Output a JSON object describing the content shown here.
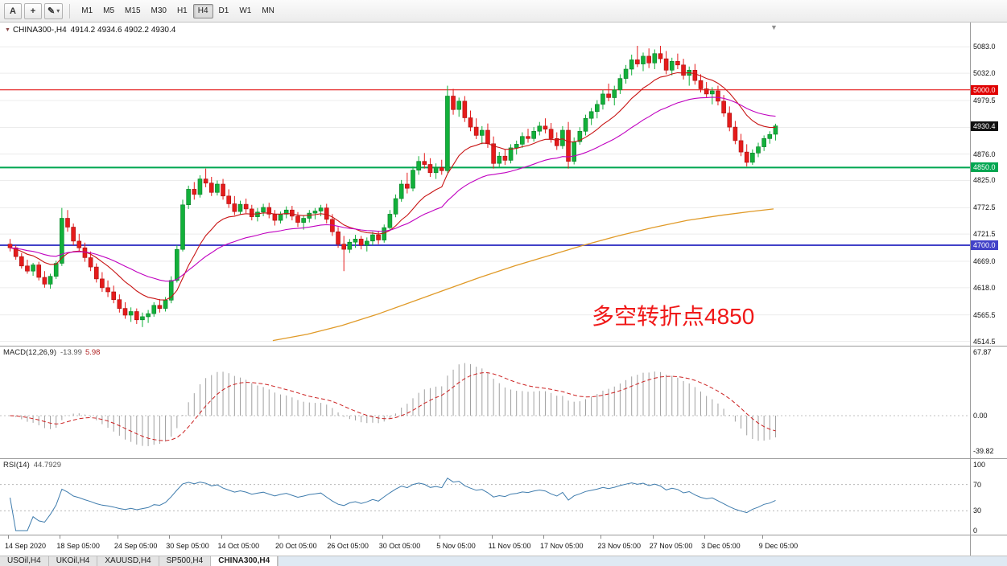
{
  "toolbar": {
    "button_a": "A",
    "icons": {
      "crosshair": "+",
      "pencil": "✎",
      "caret": "▾"
    },
    "timeframes": [
      "M1",
      "M5",
      "M15",
      "M30",
      "H1",
      "H4",
      "D1",
      "W1",
      "MN"
    ],
    "active_timeframe": "H4"
  },
  "chart": {
    "type": "candlestick",
    "symbol_label": "CHINA300-,H4",
    "ohlc_text": "4914.2 4934.6 4902.2 4930.4",
    "collapse_icon": "▼",
    "shift_icon": "▼",
    "annotation": {
      "text": "多空转折点4850",
      "color": "#f01818"
    },
    "axis_labels": [
      "5083.0",
      "5032.0",
      "4979.5",
      "4927.5",
      "4876.0",
      "4825.0",
      "4772.5",
      "4721.5",
      "4669.0",
      "4618.0",
      "4565.5",
      "4514.5"
    ],
    "hlines": [
      {
        "price": 5000,
        "label": "5000.0",
        "color": "#e00000",
        "width": 1
      },
      {
        "price": 4850,
        "label": "4850.0",
        "color": "#00a651",
        "width": 2
      },
      {
        "price": 4700,
        "label": "4700.0",
        "color": "#4242c8",
        "width": 2
      }
    ],
    "current_price": {
      "value": 4930.4,
      "label": "4930.4",
      "badge_color": "#111111"
    },
    "colors": {
      "up": "#12b03a",
      "up_border": "#0a7d28",
      "down": "#e51b1b",
      "down_border": "#a80f0f",
      "ma_fast": "#c81414",
      "ma_mid": "#c000c0",
      "ma_slow": "#e09a28",
      "macd_hist": "#a0a0a0",
      "macd_signal": "#cc2222",
      "rsi_line": "#3f7cad"
    },
    "ma_slow_points": [
      [
        46,
        4516
      ],
      [
        52,
        4528
      ],
      [
        58,
        4545
      ],
      [
        64,
        4566
      ],
      [
        70,
        4590
      ],
      [
        76,
        4614
      ],
      [
        82,
        4638
      ],
      [
        88,
        4660
      ],
      [
        94,
        4680
      ],
      [
        100,
        4700
      ],
      [
        106,
        4718
      ],
      [
        112,
        4734
      ],
      [
        118,
        4748
      ],
      [
        124,
        4758
      ],
      [
        129,
        4765
      ],
      [
        133,
        4770
      ]
    ],
    "candles": [
      [
        4702,
        4712,
        4688,
        4695
      ],
      [
        4695,
        4700,
        4672,
        4678
      ],
      [
        4678,
        4685,
        4655,
        4660
      ],
      [
        4660,
        4672,
        4645,
        4650
      ],
      [
        4650,
        4666,
        4641,
        4662
      ],
      [
        4662,
        4668,
        4632,
        4638
      ],
      [
        4638,
        4650,
        4618,
        4625
      ],
      [
        4625,
        4645,
        4616,
        4640
      ],
      [
        4640,
        4670,
        4635,
        4665
      ],
      [
        4665,
        4772,
        4660,
        4752
      ],
      [
        4752,
        4768,
        4726,
        4735
      ],
      [
        4735,
        4742,
        4700,
        4708
      ],
      [
        4708,
        4722,
        4688,
        4695
      ],
      [
        4695,
        4705,
        4668,
        4676
      ],
      [
        4676,
        4688,
        4650,
        4658
      ],
      [
        4658,
        4665,
        4628,
        4635
      ],
      [
        4635,
        4648,
        4610,
        4618
      ],
      [
        4618,
        4632,
        4600,
        4610
      ],
      [
        4610,
        4622,
        4588,
        4595
      ],
      [
        4595,
        4605,
        4570,
        4578
      ],
      [
        4578,
        4590,
        4558,
        4565
      ],
      [
        4565,
        4580,
        4552,
        4572
      ],
      [
        4572,
        4578,
        4548,
        4556
      ],
      [
        4556,
        4570,
        4542,
        4562
      ],
      [
        4562,
        4575,
        4550,
        4568
      ],
      [
        4568,
        4590,
        4562,
        4584
      ],
      [
        4584,
        4596,
        4570,
        4578
      ],
      [
        4578,
        4600,
        4572,
        4594
      ],
      [
        4594,
        4640,
        4588,
        4632
      ],
      [
        4632,
        4700,
        4628,
        4692
      ],
      [
        4692,
        4788,
        4688,
        4778
      ],
      [
        4778,
        4815,
        4770,
        4808
      ],
      [
        4808,
        4822,
        4788,
        4798
      ],
      [
        4798,
        4835,
        4792,
        4828
      ],
      [
        4828,
        4848,
        4812,
        4820
      ],
      [
        4820,
        4832,
        4795,
        4802
      ],
      [
        4802,
        4825,
        4796,
        4818
      ],
      [
        4818,
        4828,
        4788,
        4795
      ],
      [
        4795,
        4808,
        4772,
        4780
      ],
      [
        4780,
        4795,
        4758,
        4765
      ],
      [
        4765,
        4786,
        4760,
        4779
      ],
      [
        4779,
        4790,
        4762,
        4770
      ],
      [
        4770,
        4778,
        4748,
        4755
      ],
      [
        4755,
        4772,
        4746,
        4764
      ],
      [
        4764,
        4780,
        4756,
        4773
      ],
      [
        4773,
        4782,
        4752,
        4760
      ],
      [
        4760,
        4768,
        4738,
        4748
      ],
      [
        4748,
        4765,
        4742,
        4760
      ],
      [
        4760,
        4775,
        4752,
        4768
      ],
      [
        4768,
        4776,
        4748,
        4756
      ],
      [
        4756,
        4764,
        4735,
        4744
      ],
      [
        4744,
        4758,
        4730,
        4752
      ],
      [
        4752,
        4768,
        4744,
        4762
      ],
      [
        4762,
        4772,
        4750,
        4766
      ],
      [
        4766,
        4778,
        4756,
        4772
      ],
      [
        4772,
        4780,
        4742,
        4750
      ],
      [
        4750,
        4760,
        4718,
        4726
      ],
      [
        4726,
        4735,
        4695,
        4702
      ],
      [
        4702,
        4718,
        4650,
        4692
      ],
      [
        4692,
        4712,
        4685,
        4706
      ],
      [
        4706,
        4720,
        4695,
        4712
      ],
      [
        4712,
        4718,
        4692,
        4700
      ],
      [
        4700,
        4715,
        4688,
        4708
      ],
      [
        4708,
        4726,
        4700,
        4720
      ],
      [
        4720,
        4728,
        4702,
        4710
      ],
      [
        4710,
        4740,
        4705,
        4734
      ],
      [
        4734,
        4768,
        4728,
        4760
      ],
      [
        4760,
        4798,
        4754,
        4790
      ],
      [
        4790,
        4826,
        4784,
        4818
      ],
      [
        4818,
        4840,
        4800,
        4810
      ],
      [
        4810,
        4852,
        4804,
        4845
      ],
      [
        4845,
        4872,
        4836,
        4862
      ],
      [
        4862,
        4878,
        4848,
        4856
      ],
      [
        4856,
        4868,
        4832,
        4840
      ],
      [
        4840,
        4858,
        4828,
        4850
      ],
      [
        4850,
        4865,
        4836,
        4844
      ],
      [
        4844,
        5008,
        4840,
        4988
      ],
      [
        4988,
        5002,
        4952,
        4962
      ],
      [
        4962,
        4985,
        4948,
        4978
      ],
      [
        4978,
        4988,
        4938,
        4946
      ],
      [
        4946,
        4960,
        4920,
        4928
      ],
      [
        4928,
        4945,
        4905,
        4912
      ],
      [
        4912,
        4930,
        4895,
        4922
      ],
      [
        4922,
        4935,
        4888,
        4896
      ],
      [
        4896,
        4910,
        4848,
        4858
      ],
      [
        4858,
        4880,
        4850,
        4872
      ],
      [
        4872,
        4885,
        4855,
        4864
      ],
      [
        4864,
        4895,
        4858,
        4888
      ],
      [
        4888,
        4902,
        4875,
        4895
      ],
      [
        4895,
        4918,
        4888,
        4910
      ],
      [
        4910,
        4925,
        4898,
        4906
      ],
      [
        4906,
        4928,
        4900,
        4920
      ],
      [
        4920,
        4938,
        4912,
        4930
      ],
      [
        4930,
        4945,
        4916,
        4924
      ],
      [
        4924,
        4936,
        4898,
        4906
      ],
      [
        4906,
        4918,
        4884,
        4892
      ],
      [
        4892,
        4930,
        4886,
        4922
      ],
      [
        4922,
        4938,
        4848,
        4862
      ],
      [
        4862,
        4908,
        4856,
        4900
      ],
      [
        4900,
        4928,
        4894,
        4920
      ],
      [
        4920,
        4952,
        4912,
        4945
      ],
      [
        4945,
        4965,
        4932,
        4958
      ],
      [
        4958,
        4980,
        4945,
        4972
      ],
      [
        4972,
        5000,
        4962,
        4992
      ],
      [
        4992,
        5012,
        4978,
        4985
      ],
      [
        4985,
        5008,
        4970,
        5000
      ],
      [
        5000,
        5030,
        4992,
        5022
      ],
      [
        5022,
        5048,
        5012,
        5040
      ],
      [
        5040,
        5068,
        5028,
        5058
      ],
      [
        5058,
        5085,
        5044,
        5050
      ],
      [
        5050,
        5072,
        5036,
        5065
      ],
      [
        5065,
        5080,
        5042,
        5052
      ],
      [
        5052,
        5078,
        5040,
        5070
      ],
      [
        5070,
        5085,
        5052,
        5060
      ],
      [
        5060,
        5075,
        5030,
        5038
      ],
      [
        5038,
        5062,
        5028,
        5055
      ],
      [
        5055,
        5070,
        5040,
        5048
      ],
      [
        5048,
        5060,
        5020,
        5028
      ],
      [
        5028,
        5045,
        5008,
        5038
      ],
      [
        5038,
        5050,
        5010,
        5018
      ],
      [
        5018,
        5030,
        4995,
        5002
      ],
      [
        5002,
        5015,
        4985,
        4992
      ],
      [
        4992,
        5005,
        4972,
        4998
      ],
      [
        4998,
        5008,
        4970,
        4978
      ],
      [
        4978,
        4990,
        4948,
        4955
      ],
      [
        4955,
        4968,
        4920,
        4928
      ],
      [
        4928,
        4940,
        4895,
        4902
      ],
      [
        4902,
        4915,
        4872,
        4880
      ],
      [
        4880,
        4895,
        4852,
        4860
      ],
      [
        4860,
        4885,
        4855,
        4878
      ],
      [
        4878,
        4898,
        4870,
        4890
      ],
      [
        4890,
        4912,
        4882,
        4906
      ],
      [
        4906,
        4920,
        4896,
        4914
      ],
      [
        4914.2,
        4934.6,
        4902.2,
        4930.4
      ]
    ]
  },
  "macd": {
    "label": "MACD(12,26,9)",
    "value_main": "-13.99",
    "value_signal": "5.98",
    "axis": [
      "67.87",
      "0.00",
      "-39.82"
    ]
  },
  "rsi": {
    "label": "RSI(14)",
    "value": "44.7929",
    "axis": [
      "100",
      "70",
      "30",
      "0"
    ],
    "levels": [
      70,
      30
    ]
  },
  "time_axis": {
    "labels": [
      "14 Sep 2020",
      "18 Sep 05:00",
      "24 Sep 05:00",
      "30 Sep 05:00",
      "14 Oct 05:00",
      "20 Oct 05:00",
      "26 Oct 05:00",
      "30 Oct 05:00",
      "5 Nov 05:00",
      "11 Nov 05:00",
      "17 Nov 05:00",
      "23 Nov 05:00",
      "27 Nov 05:00",
      "3 Dec 05:00",
      "9 Dec 05:00"
    ],
    "anchors": [
      0,
      9,
      19,
      28,
      37,
      47,
      56,
      65,
      75,
      84,
      93,
      103,
      112,
      121,
      131
    ]
  },
  "tabs": {
    "items": [
      "USOil,H4",
      "UKOil,H4",
      "XAUUSD,H4",
      "SP500,H4",
      "CHINA300,H4"
    ],
    "active": "CHINA300,H4"
  }
}
